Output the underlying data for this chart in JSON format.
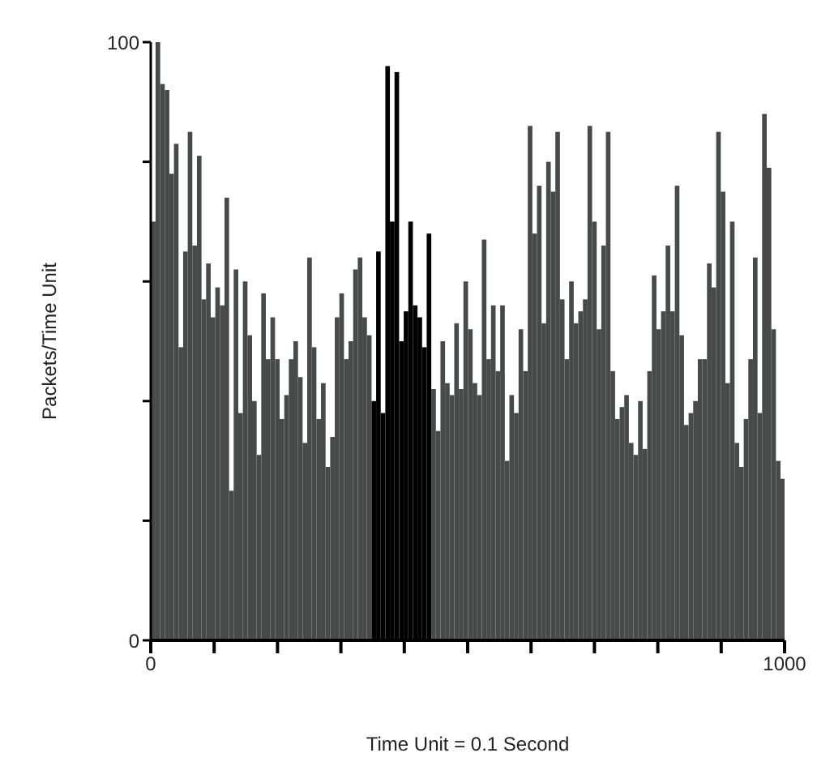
{
  "chart_data": {
    "type": "histogram",
    "xlabel": "Time Unit = 0.1 Second",
    "ylabel": "Packets/Time Unit",
    "bins": [
      0,
      7.25,
      14.5,
      21.75,
      29,
      36.25,
      43.5,
      50.75,
      58,
      65.25,
      72.5,
      79.75,
      87,
      94.25,
      101.5,
      108.75,
      116,
      123.25,
      130.5,
      137.75,
      145,
      152.25,
      159.5,
      166.75,
      174,
      181.25,
      188.5,
      195.75,
      203,
      210.25,
      217.5,
      224.75,
      232,
      239.25,
      246.5,
      253.75,
      261,
      268.25,
      275.5,
      282.75,
      290,
      297.25,
      304.5,
      311.75,
      319,
      326.25,
      333.5,
      340.75,
      348,
      355.25,
      362.5,
      369.75,
      377,
      384.25,
      391.5,
      398.75,
      406,
      413.25,
      420.5,
      427.75,
      435,
      442.25,
      449.5,
      456.75,
      464,
      471.25,
      478.5,
      485.75,
      493,
      500.25,
      507.5,
      514.75,
      522,
      529.25,
      536.5,
      543.75,
      551,
      558.25,
      565.5,
      572.75,
      580,
      587.25,
      594.5,
      601.75,
      609,
      616.25,
      623.5,
      630.75,
      638,
      645.25,
      652.5,
      659.75,
      667,
      674.25,
      681.5,
      688.75,
      696,
      703.25,
      710.5,
      717.75,
      725,
      732.25,
      739.5,
      746.75,
      754,
      761.25,
      768.5,
      775.75,
      783,
      790.25,
      797.5,
      804.75,
      812,
      819.25,
      826.5,
      833.75,
      841,
      848.25,
      855.5,
      862.75,
      870,
      877.25,
      884.5,
      891.75,
      899,
      906.25,
      913.5,
      920.75,
      928,
      935.25,
      942.5,
      949.75,
      957,
      964.25,
      971.5,
      978.75,
      986,
      993.25,
      1000
    ],
    "values": [
      70,
      100,
      93,
      92,
      78,
      83,
      49,
      65,
      85,
      66,
      81,
      57,
      63,
      54,
      59,
      56,
      74,
      25,
      62,
      38,
      60,
      51,
      40,
      31,
      58,
      47,
      54,
      47,
      37,
      41,
      47,
      50,
      44,
      33,
      64,
      49,
      37,
      43,
      29,
      34,
      54,
      58,
      47,
      50,
      62,
      64,
      54,
      51,
      40,
      65,
      38,
      96,
      70,
      95,
      50,
      55,
      70,
      56,
      54,
      49,
      68,
      42,
      35,
      50,
      43,
      41,
      53,
      42,
      60,
      52,
      43,
      41,
      67,
      47,
      56,
      45,
      56,
      30,
      41,
      38,
      52,
      45,
      86,
      68,
      76,
      53,
      80,
      75,
      85,
      57,
      47,
      60,
      53,
      55,
      57,
      86,
      70,
      52,
      66,
      85,
      45,
      37,
      39,
      41,
      33,
      31,
      40,
      32,
      45,
      61,
      52,
      55,
      66,
      55,
      76,
      51,
      36,
      38,
      40,
      47,
      47,
      63,
      59,
      85,
      75,
      43,
      70,
      33,
      29,
      37,
      47,
      64,
      38,
      88,
      79,
      52,
      30,
      27
    ],
    "colors": [
      "#474a48",
      "#474a48",
      "#474a48",
      "#474a48",
      "#474a48",
      "#474a48",
      "#474a48",
      "#474a48",
      "#474a48",
      "#474a48",
      "#474a48",
      "#474a48",
      "#474a48",
      "#474a48",
      "#474a48",
      "#474a48",
      "#474a48",
      "#474a48",
      "#474a48",
      "#474a48",
      "#474a48",
      "#474a48",
      "#474a48",
      "#474a48",
      "#474a48",
      "#474a48",
      "#474a48",
      "#474a48",
      "#474a48",
      "#474a48",
      "#474a48",
      "#474a48",
      "#474a48",
      "#474a48",
      "#474a48",
      "#474a48",
      "#474a48",
      "#474a48",
      "#474a48",
      "#474a48",
      "#474a48",
      "#474a48",
      "#474a48",
      "#474a48",
      "#474a48",
      "#474a48",
      "#474a48",
      "#474a48",
      "#000000",
      "#000000",
      "#000000",
      "#000000",
      "#000000",
      "#000000",
      "#000000",
      "#000000",
      "#000000",
      "#000000",
      "#000000",
      "#000000",
      "#000000",
      "#474a48",
      "#474a48",
      "#474a48",
      "#474a48",
      "#474a48",
      "#474a48",
      "#474a48",
      "#474a48",
      "#474a48",
      "#474a48",
      "#474a48",
      "#474a48",
      "#474a48",
      "#474a48",
      "#474a48",
      "#474a48",
      "#474a48",
      "#474a48",
      "#474a48",
      "#474a48",
      "#474a48",
      "#474a48",
      "#474a48",
      "#474a48",
      "#474a48",
      "#474a48",
      "#474a48",
      "#474a48",
      "#474a48",
      "#474a48",
      "#474a48",
      "#474a48",
      "#474a48",
      "#474a48",
      "#474a48",
      "#474a48",
      "#474a48",
      "#474a48",
      "#474a48",
      "#474a48",
      "#474a48",
      "#474a48",
      "#474a48",
      "#474a48",
      "#474a48",
      "#474a48",
      "#474a48",
      "#474a48",
      "#474a48",
      "#474a48",
      "#474a48",
      "#474a48",
      "#474a48",
      "#474a48",
      "#474a48",
      "#474a48",
      "#474a48",
      "#474a48",
      "#474a48",
      "#474a48",
      "#474a48",
      "#474a48",
      "#474a48",
      "#474a48",
      "#474a48",
      "#474a48",
      "#474a48",
      "#474a48",
      "#474a48",
      "#474a48",
      "#474a48",
      "#474a48",
      "#474a48",
      "#474a48",
      "#474a48",
      "#474a48",
      "#474a48"
    ],
    "xlim": [
      0,
      1000
    ],
    "xticks": [
      0,
      {
        "value": 100,
        "label": null
      },
      {
        "value": 200,
        "label": null
      },
      {
        "value": 300,
        "label": null
      },
      {
        "value": 400,
        "label": null
      },
      {
        "value": 500,
        "label": null
      },
      {
        "value": 600,
        "label": null
      },
      {
        "value": 700,
        "label": null
      },
      {
        "value": 800,
        "label": null
      },
      {
        "value": 900,
        "label": null
      },
      1000
    ],
    "ylim": [
      0,
      100
    ],
    "yticks": [
      0,
      {
        "value": 20,
        "label": null
      },
      {
        "value": 40,
        "label": null
      },
      {
        "value": 60,
        "label": null
      },
      {
        "value": 80,
        "label": null
      },
      100
    ],
    "grid": false
  }
}
